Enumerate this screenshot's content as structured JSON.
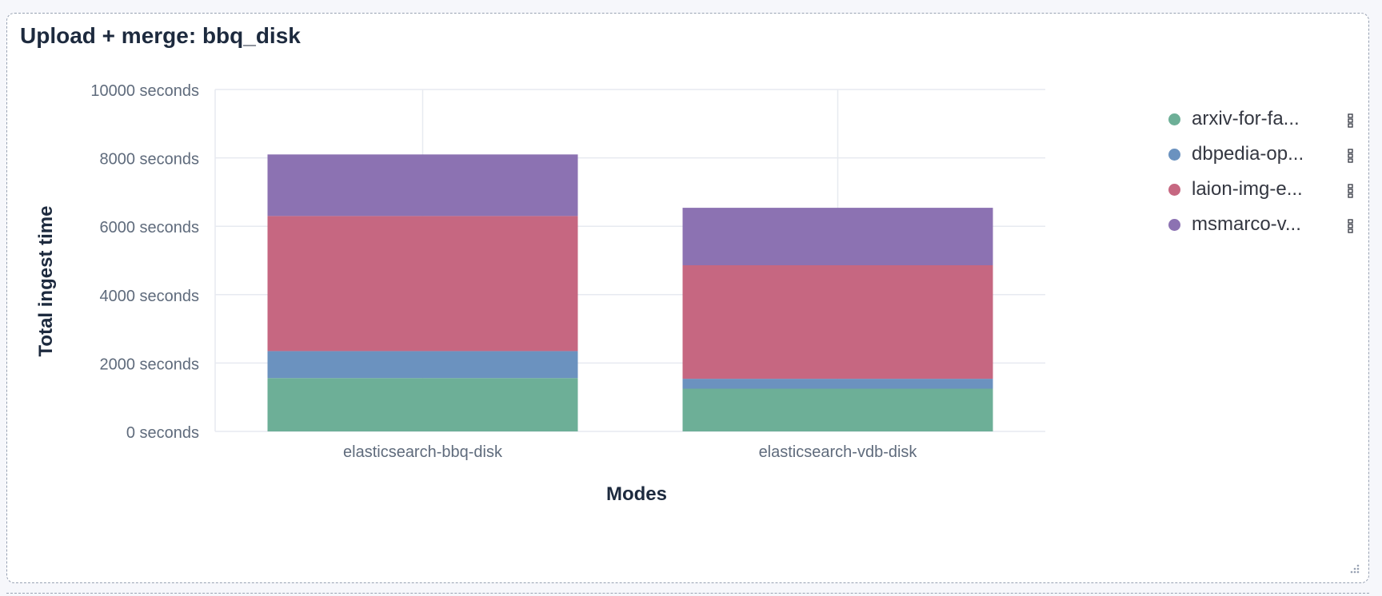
{
  "panel": {
    "title": "Upload + merge: bbq_disk"
  },
  "chart_data": {
    "type": "bar",
    "stacked": true,
    "xlabel": "Modes",
    "ylabel": "Total ingest time",
    "ylim": [
      0,
      10000
    ],
    "y_ticks": [
      0,
      2000,
      4000,
      6000,
      8000,
      10000
    ],
    "y_tick_suffix": " seconds",
    "grid": true,
    "legend_position": "right",
    "categories": [
      "elasticsearch-bbq-disk",
      "elasticsearch-vdb-disk"
    ],
    "series": [
      {
        "name": "arxiv-for-fa...",
        "color": "#6daf97",
        "values": [
          1560,
          1250
        ]
      },
      {
        "name": "dbpedia-op...",
        "color": "#6b92bf",
        "values": [
          790,
          290
        ]
      },
      {
        "name": "laion-img-e...",
        "color": "#c66781",
        "values": [
          3950,
          3320
        ]
      },
      {
        "name": "msmarco-v...",
        "color": "#8c72b2",
        "values": [
          1800,
          1680
        ]
      }
    ]
  },
  "colors": {
    "grid": "#e7eaf0",
    "tick_text": "#5f6b7c",
    "axis_title": "#1d2a3e"
  },
  "icons": {
    "legend_action": "vertical-dots-icon",
    "resize": "resize-corner-icon"
  }
}
